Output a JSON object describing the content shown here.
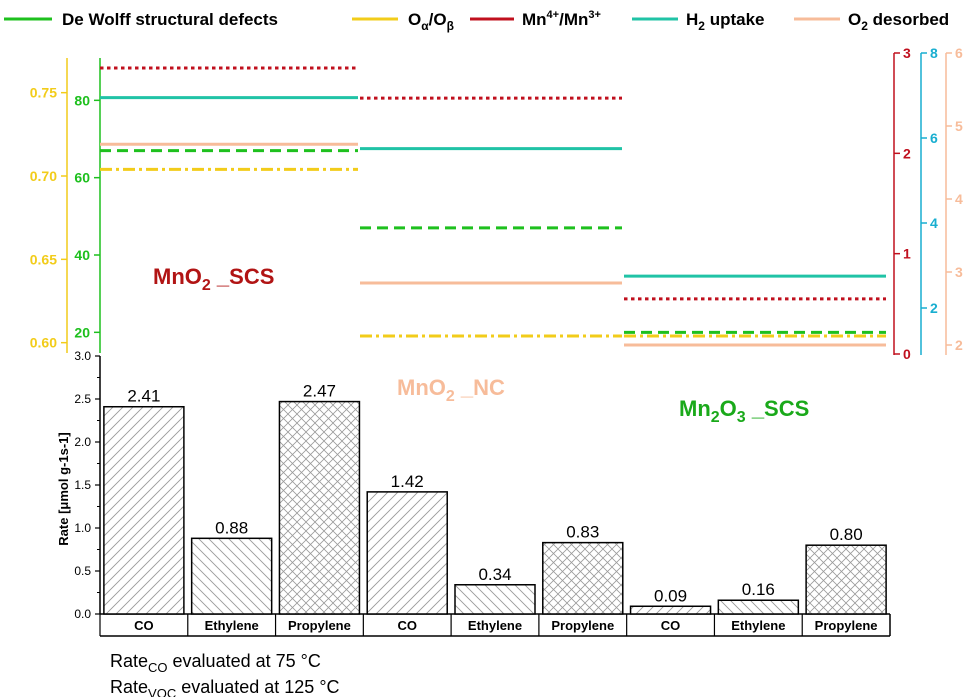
{
  "legend": [
    {
      "text": "De Wolff structural defects",
      "color": "#1ec01e",
      "style": "solid"
    },
    {
      "text": "Oα/Oβ",
      "color": "#f2cc1a",
      "style": "solid"
    },
    {
      "text": "Mn4+/Mn3+",
      "color": "#c0101e",
      "style": "solid"
    },
    {
      "text": "H2 uptake",
      "color": "#20c3a6",
      "style": "solid"
    },
    {
      "text": "O2 desorbed",
      "color": "#f7bc9a",
      "style": "solid"
    }
  ],
  "group_labels": [
    {
      "text": "MnO2 _SCS",
      "color": "#b11414"
    },
    {
      "text": "MnO2 _NC",
      "color": "#f7bc9a"
    },
    {
      "text": "Mn2O3 _SCS",
      "color": "#1aa91a"
    }
  ],
  "footnotes": {
    "line1_main": "Rate",
    "line1_sub": "CO",
    "line1_rest": " evaluated at 75 °C",
    "line2_main": "Rate",
    "line2_sub": "VOC",
    "line2_rest": " evaluated at 125 °C"
  },
  "chart_data": [
    {
      "type": "bar",
      "categories": [
        "CO",
        "Ethylene",
        "Propylene",
        "CO",
        "Ethylene",
        "Propylene",
        "CO",
        "Ethylene",
        "Propylene"
      ],
      "groups": [
        "MnO2 _SCS",
        "MnO2 _SCS",
        "MnO2 _SCS",
        "MnO2 _NC",
        "MnO2 _NC",
        "MnO2 _NC",
        "Mn2O3 _SCS",
        "Mn2O3 _SCS",
        "Mn2O3 _SCS"
      ],
      "values": [
        2.41,
        0.88,
        2.47,
        1.42,
        0.34,
        0.83,
        0.09,
        0.16,
        0.8
      ],
      "data_labels": [
        "2.41",
        "0.88",
        "2.47",
        "1.42",
        "0.34",
        "0.83",
        "0.09",
        "0.16",
        "0.80"
      ],
      "ylabel": "Rate [μmol g-1s-1]",
      "ylim": [
        0,
        3.0
      ],
      "yticks": [
        "0.0",
        "0.5",
        "1.0",
        "1.5",
        "2.0",
        "2.5",
        "3.0"
      ],
      "patterns": [
        "forward-hatch",
        "back-hatch",
        "cross-hatch",
        "forward-hatch",
        "back-hatch",
        "cross-hatch",
        "forward-hatch",
        "back-hatch",
        "cross-hatch"
      ]
    },
    {
      "type": "line",
      "categories": [
        "MnO2 _SCS",
        "MnO2 _NC",
        "Mn2O3 _SCS"
      ],
      "series": [
        {
          "name": "De Wolff structural defects",
          "values": [
            67,
            47,
            20
          ],
          "axis": "green",
          "dash": "dashed",
          "color": "#1ec01e"
        },
        {
          "name": "Oα/Oβ",
          "values": [
            0.704,
            0.604,
            0.604
          ],
          "axis": "yellow",
          "dash": "dashdot",
          "color": "#f2cc1a"
        },
        {
          "name": "Mn4+/Mn3+",
          "values": [
            2.85,
            2.55,
            0.55
          ],
          "axis": "red",
          "dash": "dotted",
          "color": "#c0101e"
        },
        {
          "name": "H2 uptake",
          "values": [
            6.95,
            5.75,
            2.75
          ],
          "axis": "cyan",
          "dash": "solid",
          "color": "#20c3a6"
        },
        {
          "name": "O2 desorbed",
          "values": [
            4.75,
            2.85,
            2.0
          ],
          "axis": "peach",
          "dash": "solid",
          "color": "#f7bc9a"
        }
      ],
      "axes": [
        {
          "id": "yellow",
          "side": "left",
          "ylim": [
            0.598,
            0.766
          ],
          "ticks": [
            "0.60",
            "0.65",
            "0.70",
            "0.75"
          ],
          "color": "#f2cc1a"
        },
        {
          "id": "green",
          "side": "left",
          "ylim": [
            10,
            85
          ],
          "ticks": [
            "20",
            "40",
            "60",
            "80"
          ],
          "color": "#1ec01e"
        },
        {
          "id": "red",
          "side": "right",
          "ylim": [
            0,
            3
          ],
          "ticks": [
            "0",
            "1",
            "2",
            "3"
          ],
          "color": "#c0101e"
        },
        {
          "id": "cyan",
          "side": "right",
          "ylim": [
            0,
            8
          ],
          "ticks": [
            "2",
            "4",
            "6",
            "8"
          ],
          "color": "#18aed0"
        },
        {
          "id": "peach",
          "side": "right",
          "ylim": [
            2,
            6
          ],
          "ticks": [
            "2",
            "3",
            "4",
            "5",
            "6"
          ],
          "color": "#f7bc9a"
        }
      ]
    }
  ]
}
